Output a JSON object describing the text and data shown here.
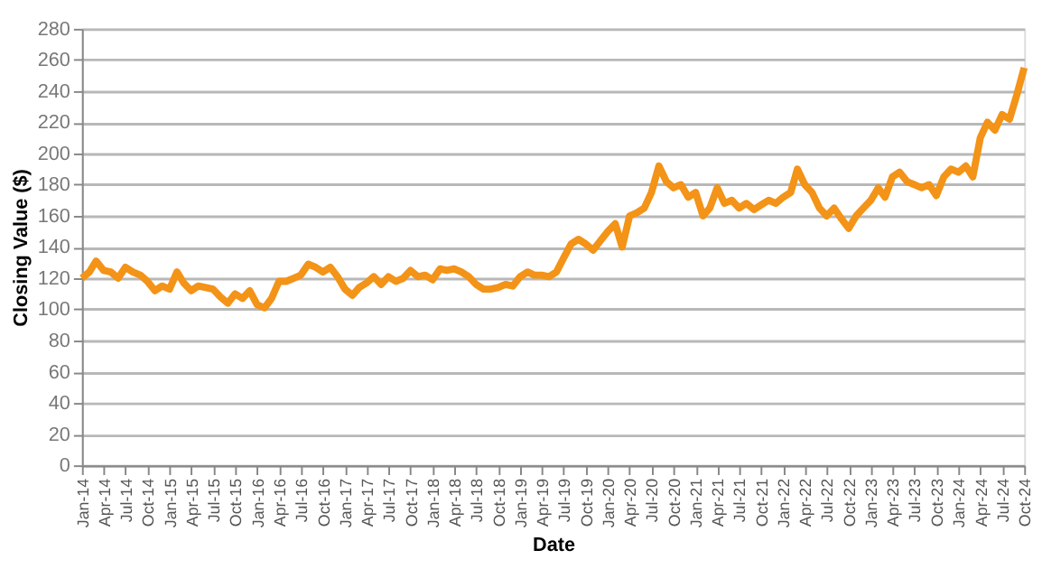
{
  "chart_data": {
    "type": "line",
    "xlabel": "Date",
    "ylabel": "Closing Value ($)",
    "x": [
      "2014-01",
      "2014-02",
      "2014-03",
      "2014-04",
      "2014-05",
      "2014-06",
      "2014-07",
      "2014-08",
      "2014-09",
      "2014-10",
      "2014-11",
      "2014-12",
      "2015-01",
      "2015-02",
      "2015-03",
      "2015-04",
      "2015-05",
      "2015-06",
      "2015-07",
      "2015-08",
      "2015-09",
      "2015-10",
      "2015-11",
      "2015-12",
      "2016-01",
      "2016-02",
      "2016-03",
      "2016-04",
      "2016-05",
      "2016-06",
      "2016-07",
      "2016-08",
      "2016-09",
      "2016-10",
      "2016-11",
      "2016-12",
      "2017-01",
      "2017-02",
      "2017-03",
      "2017-04",
      "2017-05",
      "2017-06",
      "2017-07",
      "2017-08",
      "2017-09",
      "2017-10",
      "2017-11",
      "2017-12",
      "2018-01",
      "2018-02",
      "2018-03",
      "2018-04",
      "2018-05",
      "2018-06",
      "2018-07",
      "2018-08",
      "2018-09",
      "2018-10",
      "2018-11",
      "2018-12",
      "2019-01",
      "2019-02",
      "2019-03",
      "2019-04",
      "2019-05",
      "2019-06",
      "2019-07",
      "2019-08",
      "2019-09",
      "2019-10",
      "2019-11",
      "2019-12",
      "2020-01",
      "2020-02",
      "2020-03",
      "2020-04",
      "2020-05",
      "2020-06",
      "2020-07",
      "2020-08",
      "2020-09",
      "2020-10",
      "2020-11",
      "2020-12",
      "2021-01",
      "2021-02",
      "2021-03",
      "2021-04",
      "2021-05",
      "2021-06",
      "2021-07",
      "2021-08",
      "2021-09",
      "2021-10",
      "2021-11",
      "2021-12",
      "2022-01",
      "2022-02",
      "2022-03",
      "2022-04",
      "2022-05",
      "2022-06",
      "2022-07",
      "2022-08",
      "2022-09",
      "2022-10",
      "2022-11",
      "2022-12",
      "2023-01",
      "2023-02",
      "2023-03",
      "2023-04",
      "2023-05",
      "2023-06",
      "2023-07",
      "2023-08",
      "2023-09",
      "2023-10",
      "2023-11",
      "2023-12",
      "2024-01",
      "2024-02",
      "2024-03",
      "2024-04",
      "2024-05",
      "2024-06",
      "2024-07",
      "2024-08",
      "2024-09",
      "2024-10"
    ],
    "series": [
      {
        "color": "#f39317",
        "values": [
          120,
          124,
          131,
          125,
          124,
          120,
          127,
          124,
          122,
          118,
          112,
          115,
          113,
          124,
          117,
          112,
          115,
          114,
          113,
          108,
          104,
          110,
          107,
          112,
          103,
          101,
          107,
          118,
          118,
          120,
          122,
          129,
          127,
          124,
          127,
          121,
          113,
          109,
          114,
          117,
          121,
          116,
          121,
          118,
          120,
          125,
          121,
          122,
          119,
          126,
          125,
          126,
          124,
          121,
          116,
          113,
          113,
          114,
          116,
          115,
          121,
          124,
          122,
          122,
          121,
          124,
          133,
          142,
          145,
          142,
          138,
          144,
          150,
          155,
          140,
          160,
          162,
          165,
          175,
          192,
          182,
          178,
          180,
          172,
          175,
          160,
          165,
          178,
          168,
          170,
          165,
          168,
          164,
          167,
          170,
          168,
          172,
          175,
          190,
          180,
          175,
          165,
          160,
          165,
          158,
          152,
          160,
          165,
          170,
          178,
          172,
          185,
          188,
          182,
          180,
          178,
          180,
          173,
          185,
          190,
          188,
          192,
          185,
          210,
          220,
          215,
          225,
          222,
          238,
          255
        ]
      }
    ],
    "xlim": [
      "2014-01",
      "2024-10"
    ],
    "xticks": [
      {
        "value": "2014-01",
        "label": "Jan-14"
      },
      {
        "value": "2014-04",
        "label": "Apr-14"
      },
      {
        "value": "2014-07",
        "label": "Jul-14"
      },
      {
        "value": "2014-10",
        "label": "Oct-14"
      },
      {
        "value": "2015-01",
        "label": "Jan-15"
      },
      {
        "value": "2015-04",
        "label": "Apr-15"
      },
      {
        "value": "2015-07",
        "label": "Jul-15"
      },
      {
        "value": "2015-10",
        "label": "Oct-15"
      },
      {
        "value": "2016-01",
        "label": "Jan-16"
      },
      {
        "value": "2016-04",
        "label": "Apr-16"
      },
      {
        "value": "2016-07",
        "label": "Jul-16"
      },
      {
        "value": "2016-10",
        "label": "Oct-16"
      },
      {
        "value": "2017-01",
        "label": "Jan-17"
      },
      {
        "value": "2017-04",
        "label": "Apr-17"
      },
      {
        "value": "2017-07",
        "label": "Jul-17"
      },
      {
        "value": "2017-10",
        "label": "Oct-17"
      },
      {
        "value": "2018-01",
        "label": "Jan-18"
      },
      {
        "value": "2018-04",
        "label": "Apr-18"
      },
      {
        "value": "2018-07",
        "label": "Jul-18"
      },
      {
        "value": "2018-10",
        "label": "Oct-18"
      },
      {
        "value": "2019-01",
        "label": "Jan-19"
      },
      {
        "value": "2019-04",
        "label": "Apr-19"
      },
      {
        "value": "2019-07",
        "label": "Jul-19"
      },
      {
        "value": "2019-10",
        "label": "Oct-19"
      },
      {
        "value": "2020-01",
        "label": "Jan-20"
      },
      {
        "value": "2020-04",
        "label": "Apr-20"
      },
      {
        "value": "2020-07",
        "label": "Jul-20"
      },
      {
        "value": "2020-10",
        "label": "Oct-20"
      },
      {
        "value": "2021-01",
        "label": "Jan-21"
      },
      {
        "value": "2021-04",
        "label": "Apr-21"
      },
      {
        "value": "2021-07",
        "label": "Jul-21"
      },
      {
        "value": "2021-10",
        "label": "Oct-21"
      },
      {
        "value": "2022-01",
        "label": "Jan-22"
      },
      {
        "value": "2022-04",
        "label": "Apr-22"
      },
      {
        "value": "2022-07",
        "label": "Jul-22"
      },
      {
        "value": "2022-10",
        "label": "Oct-22"
      },
      {
        "value": "2023-01",
        "label": "Jan-23"
      },
      {
        "value": "2023-04",
        "label": "Apr-23"
      },
      {
        "value": "2023-07",
        "label": "Jul-23"
      },
      {
        "value": "2023-10",
        "label": "Oct-23"
      },
      {
        "value": "2024-01",
        "label": "Jan-24"
      },
      {
        "value": "2024-04",
        "label": "Apr-24"
      },
      {
        "value": "2024-07",
        "label": "Jul-24"
      },
      {
        "value": "2024-10",
        "label": "Oct-24"
      }
    ],
    "ylim": [
      0,
      280
    ],
    "yticks": [
      0,
      20,
      40,
      60,
      80,
      100,
      120,
      140,
      160,
      180,
      200,
      220,
      240,
      260,
      280
    ],
    "grid": "y",
    "legend": false,
    "marker": "none",
    "line_style": "solid"
  }
}
